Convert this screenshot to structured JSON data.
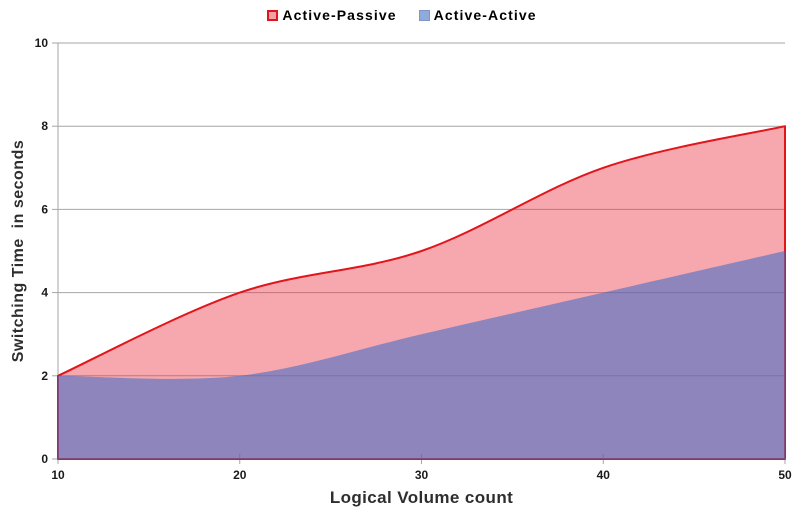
{
  "chart_data": {
    "type": "area",
    "title": "",
    "xlabel": "Logical Volume count",
    "ylabel": "Switching Time  in seconds",
    "x": [
      10,
      20,
      30,
      40,
      50
    ],
    "series": [
      {
        "name": "Active-Passive",
        "values": [
          2,
          4,
          5,
          7,
          8
        ],
        "line_color": "#E1151B",
        "fill_color": "rgba(233,48,63,0.42)",
        "legend_fill": "#F4A2A9",
        "legend_border": "#E1151B"
      },
      {
        "name": "Active-Active",
        "values": [
          2,
          2,
          3,
          4,
          5
        ],
        "line_color": "none",
        "fill_color": "rgba(72,110,197,0.60)",
        "legend_fill": "#8FAADB",
        "legend_border": "#7C96CC"
      }
    ],
    "xlim": [
      10,
      50
    ],
    "ylim": [
      0,
      10
    ],
    "x_ticks": [
      10,
      20,
      30,
      40,
      50
    ],
    "y_ticks": [
      0,
      2,
      4,
      6,
      8,
      10
    ],
    "grid": true,
    "grid_color": "#A6A6A6",
    "axis_color": "#A6A6A6",
    "tick_label_color": "#1A1A1A",
    "legend_position": "top",
    "line_smoothing": true
  }
}
